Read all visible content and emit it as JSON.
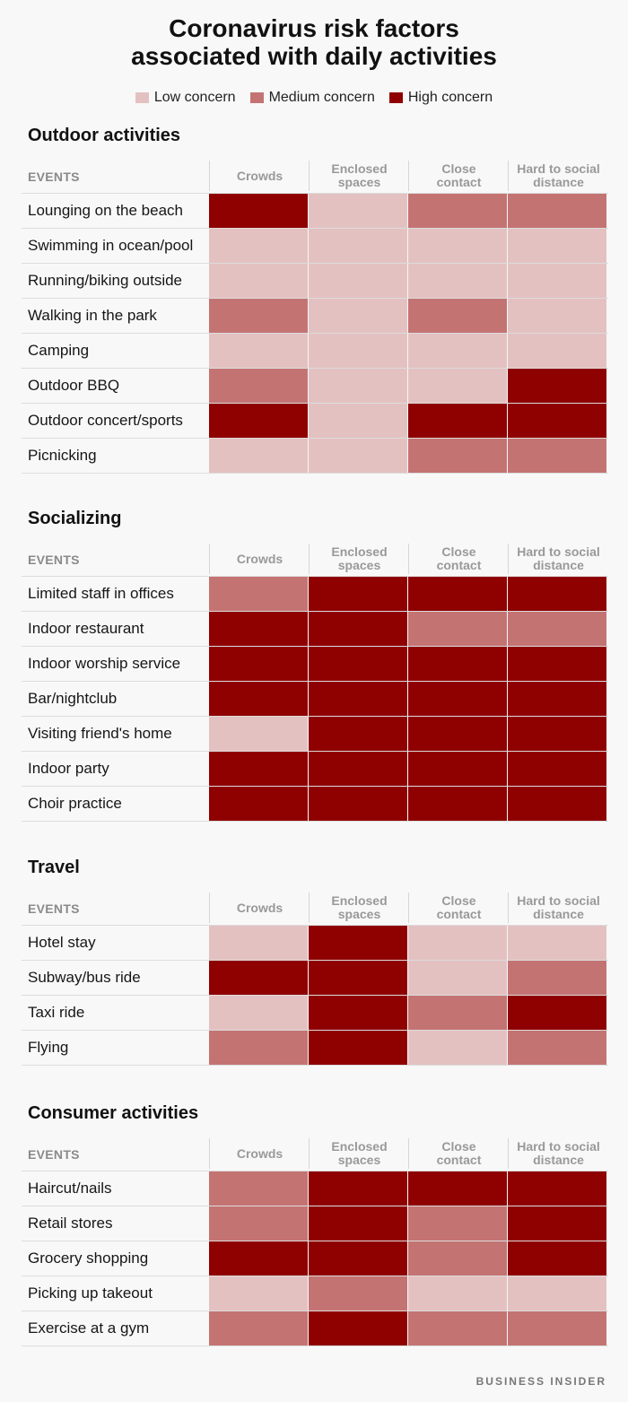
{
  "title_line1": "Coronavirus risk factors",
  "title_line2": "associated with daily activities",
  "brand": "BUSINESS INSIDER",
  "colors": {
    "low": "#e4c1c1",
    "medium": "#c47373",
    "high": "#8f0000"
  },
  "legend": {
    "low": "Low concern",
    "medium": "Medium concern",
    "high": "High concern"
  },
  "chart_data": {
    "type": "heatmap",
    "title": "Coronavirus risk factors associated with daily activities",
    "scale": [
      "Low concern",
      "Medium concern",
      "High concern"
    ],
    "row_header": "EVENTS",
    "columns": [
      [
        "Crowds"
      ],
      [
        "Enclosed",
        "spaces"
      ],
      [
        "Close",
        "contact"
      ],
      [
        "Hard to social",
        "distance"
      ]
    ],
    "sections": [
      {
        "name": "Outdoor activities",
        "rows": [
          {
            "event": "Lounging on the beach",
            "levels": [
              "high",
              "low",
              "medium",
              "medium"
            ]
          },
          {
            "event": "Swimming in ocean/pool",
            "levels": [
              "low",
              "low",
              "low",
              "low"
            ]
          },
          {
            "event": "Running/biking outside",
            "levels": [
              "low",
              "low",
              "low",
              "low"
            ]
          },
          {
            "event": "Walking in the park",
            "levels": [
              "medium",
              "low",
              "medium",
              "low"
            ]
          },
          {
            "event": "Camping",
            "levels": [
              "low",
              "low",
              "low",
              "low"
            ]
          },
          {
            "event": "Outdoor BBQ",
            "levels": [
              "medium",
              "low",
              "low",
              "high"
            ]
          },
          {
            "event": "Outdoor concert/sports",
            "levels": [
              "high",
              "low",
              "high",
              "high"
            ]
          },
          {
            "event": "Picnicking",
            "levels": [
              "low",
              "low",
              "medium",
              "medium"
            ]
          }
        ]
      },
      {
        "name": "Socializing",
        "rows": [
          {
            "event": "Limited staff in offices",
            "levels": [
              "medium",
              "high",
              "high",
              "high"
            ]
          },
          {
            "event": "Indoor restaurant",
            "levels": [
              "high",
              "high",
              "medium",
              "medium"
            ]
          },
          {
            "event": "Indoor worship service",
            "levels": [
              "high",
              "high",
              "high",
              "high"
            ]
          },
          {
            "event": "Bar/nightclub",
            "levels": [
              "high",
              "high",
              "high",
              "high"
            ]
          },
          {
            "event": "Visiting friend's home",
            "levels": [
              "low",
              "high",
              "high",
              "high"
            ]
          },
          {
            "event": "Indoor party",
            "levels": [
              "high",
              "high",
              "high",
              "high"
            ]
          },
          {
            "event": "Choir practice",
            "levels": [
              "high",
              "high",
              "high",
              "high"
            ]
          }
        ]
      },
      {
        "name": "Travel",
        "rows": [
          {
            "event": "Hotel stay",
            "levels": [
              "low",
              "high",
              "low",
              "low"
            ]
          },
          {
            "event": "Subway/bus ride",
            "levels": [
              "high",
              "high",
              "low",
              "medium"
            ]
          },
          {
            "event": "Taxi ride",
            "levels": [
              "low",
              "high",
              "medium",
              "high"
            ]
          },
          {
            "event": "Flying",
            "levels": [
              "medium",
              "high",
              "low",
              "medium"
            ]
          }
        ]
      },
      {
        "name": "Consumer activities",
        "rows": [
          {
            "event": "Haircut/nails",
            "levels": [
              "medium",
              "high",
              "high",
              "high"
            ]
          },
          {
            "event": "Retail stores",
            "levels": [
              "medium",
              "high",
              "medium",
              "high"
            ]
          },
          {
            "event": "Grocery shopping",
            "levels": [
              "high",
              "high",
              "medium",
              "high"
            ]
          },
          {
            "event": "Picking up takeout",
            "levels": [
              "low",
              "medium",
              "low",
              "low"
            ]
          },
          {
            "event": "Exercise at a gym",
            "levels": [
              "medium",
              "high",
              "medium",
              "medium"
            ]
          }
        ]
      }
    ]
  }
}
